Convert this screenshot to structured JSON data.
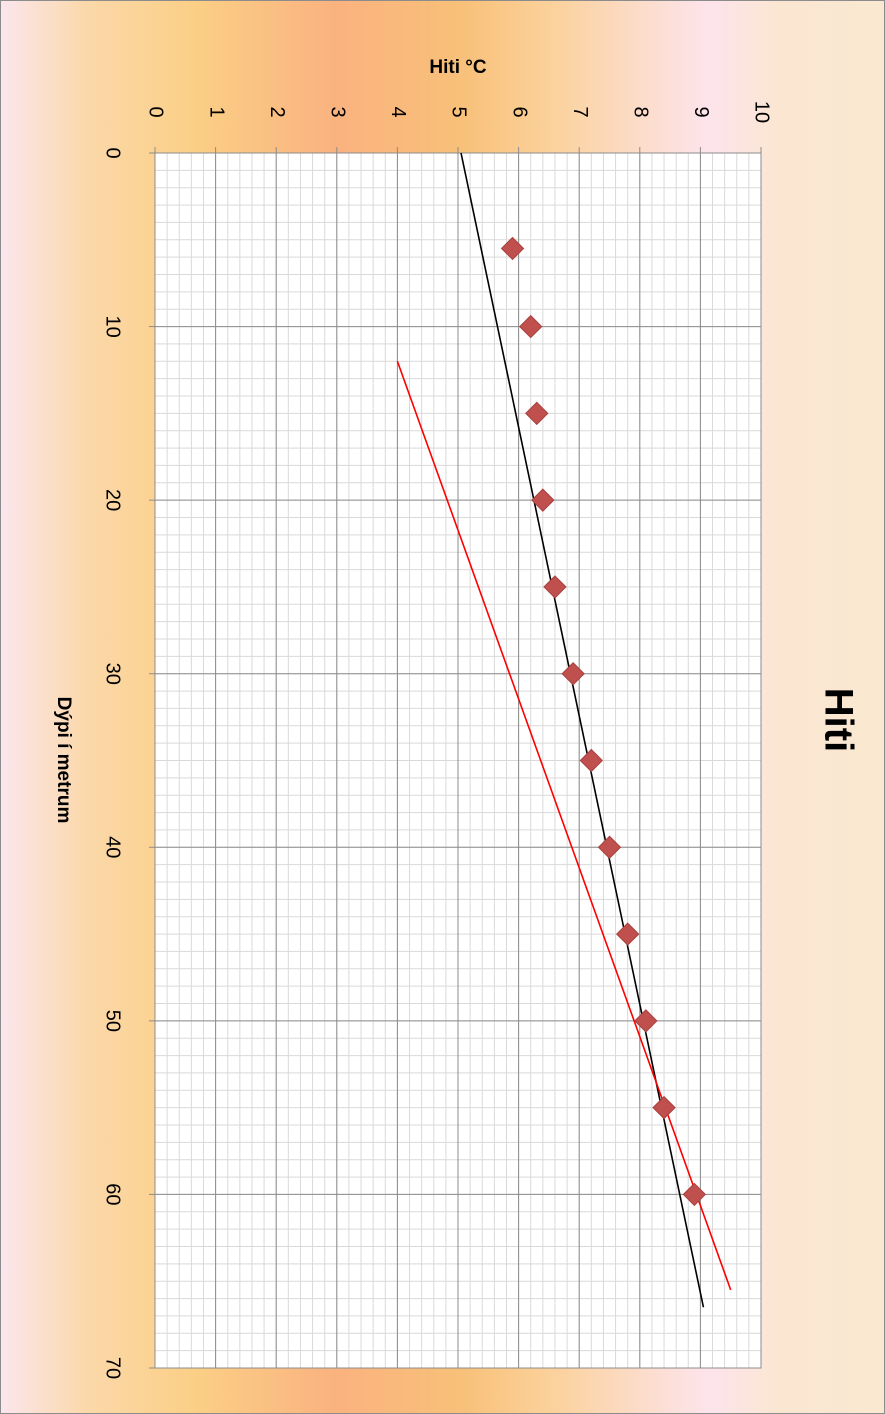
{
  "chart_data": {
    "type": "scatter",
    "title": "Hiti",
    "xlabel": "Dýpi í metrum",
    "ylabel": "Hiti °C",
    "xlim": [
      0,
      70
    ],
    "ylim": [
      0,
      10
    ],
    "x_ticks": [
      "0",
      "10",
      "20",
      "30",
      "40",
      "50",
      "60",
      "70"
    ],
    "y_ticks": [
      "0",
      "1",
      "2",
      "3",
      "4",
      "5",
      "6",
      "7",
      "8",
      "9",
      "10"
    ],
    "grid": true,
    "orientation": "rotated 90° clockwise",
    "series": [
      {
        "type": "scatter",
        "marker": "diamond",
        "color": "#c0504d",
        "x": [
          5.5,
          10,
          15,
          20,
          25,
          30,
          35,
          40,
          45,
          50,
          55,
          60
        ],
        "y": [
          5.9,
          6.2,
          6.3,
          6.4,
          6.6,
          6.9,
          7.2,
          7.5,
          7.8,
          8.1,
          8.4,
          8.9
        ]
      },
      {
        "type": "line",
        "color": "#000000",
        "x": [
          0,
          66.5
        ],
        "y": [
          5.05,
          9.05
        ]
      },
      {
        "type": "line",
        "color": "#ff0000",
        "x": [
          12,
          65.5
        ],
        "y": [
          4.0,
          9.5
        ]
      }
    ]
  }
}
